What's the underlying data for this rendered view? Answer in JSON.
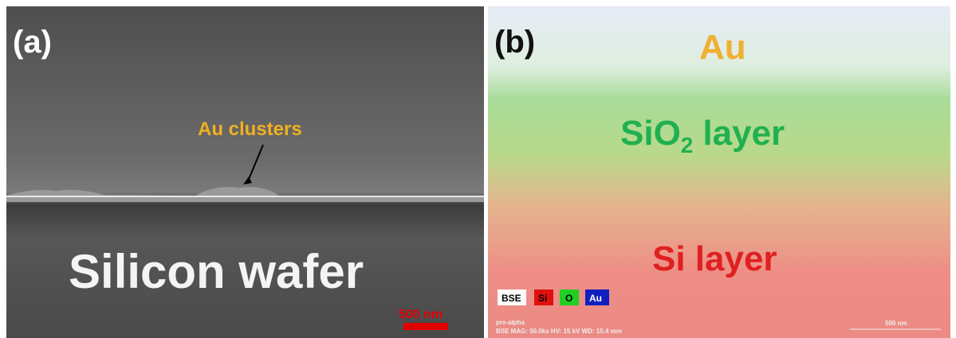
{
  "panels": [
    {
      "label": "(a)",
      "annotation": "Au clusters",
      "region": "Silicon wafer",
      "scale_bar": "500 nm"
    },
    {
      "label": "(b)",
      "layers": {
        "top": "Au",
        "middle": {
          "main": "SiO",
          "subscript": "2",
          "suffix": "layer"
        },
        "bottom": "Si layer"
      },
      "legend": [
        "BSE",
        "Si",
        "O",
        "Au"
      ],
      "footer": {
        "line1": "pre-alpha",
        "line2": "BSE   MAG: 50.0kx   HV: 15 kV   WD: 15.4 mm",
        "scale": "500 nm"
      }
    }
  ]
}
